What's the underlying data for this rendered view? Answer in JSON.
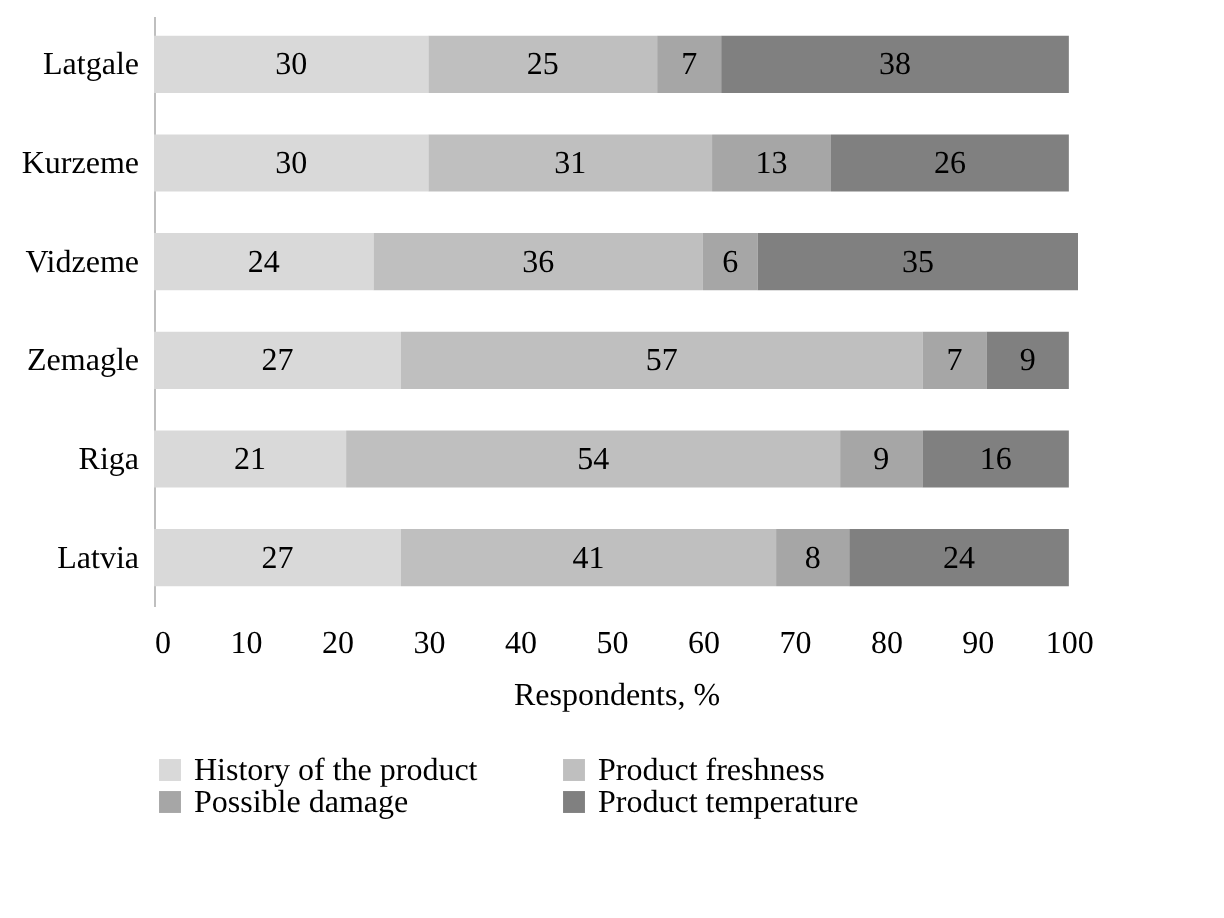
{
  "chart_data": {
    "type": "bar",
    "orientation": "horizontal",
    "stacked": true,
    "data_labels": true,
    "grid": false,
    "legend": "bottom",
    "xlabel": "Respondents, %",
    "categories": [
      "Latgale",
      "Kurzeme",
      "Vidzeme",
      "Zemagle",
      "Riga",
      "Latvia"
    ],
    "xlim": [
      0,
      101
    ],
    "xticks": [
      0,
      10,
      20,
      30,
      40,
      50,
      60,
      70,
      80,
      90,
      100
    ],
    "series": [
      {
        "name": "History of the product",
        "color": "#d9d9d9",
        "values": [
          30,
          30,
          24,
          27,
          21,
          27
        ]
      },
      {
        "name": "Product freshness",
        "color": "#bfbfbf",
        "values": [
          25,
          31,
          36,
          57,
          54,
          41
        ]
      },
      {
        "name": "Possible damage",
        "color": "#a6a6a6",
        "values": [
          7,
          13,
          6,
          7,
          9,
          8
        ]
      },
      {
        "name": "Product temperature",
        "color": "#808080",
        "values": [
          38,
          26,
          35,
          9,
          16,
          24
        ]
      }
    ]
  }
}
